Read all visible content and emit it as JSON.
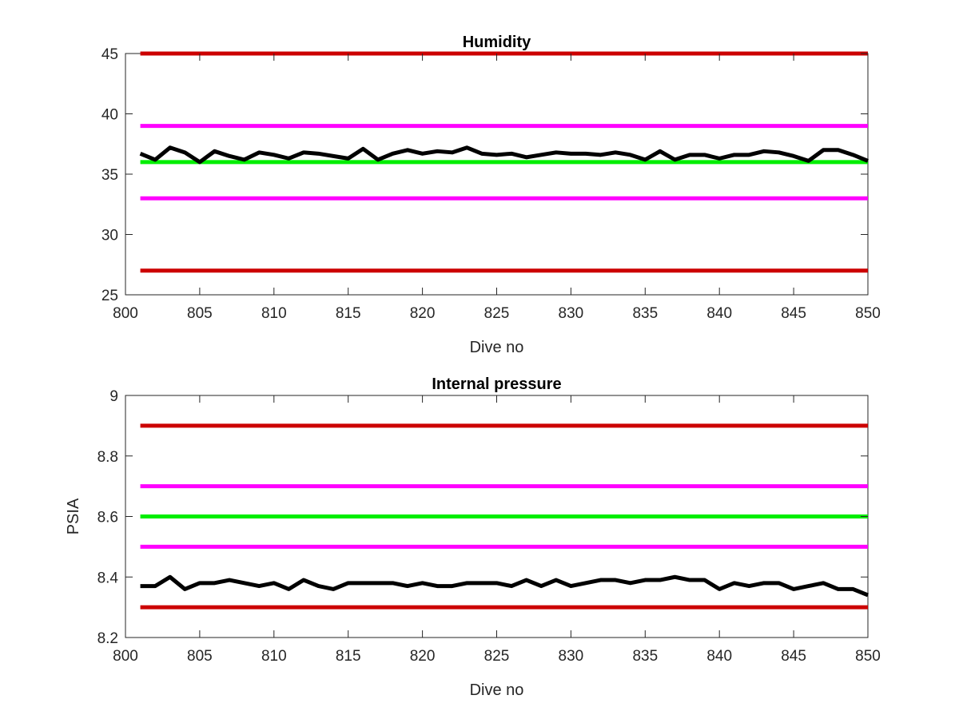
{
  "colors": {
    "limit_red": "#cc0000",
    "limit_magenta": "#ff00ff",
    "limit_green": "#00ee00",
    "data_black": "#000000",
    "axis": "#262626"
  },
  "chart_data": [
    {
      "type": "line",
      "title": "Humidity",
      "xlabel": "Dive no",
      "ylabel": "",
      "xlim": [
        800,
        850
      ],
      "ylim": [
        25,
        45
      ],
      "xticks": [
        800,
        805,
        810,
        815,
        820,
        825,
        830,
        835,
        840,
        845,
        850
      ],
      "xtick_labels": [
        "800",
        "805",
        "810",
        "815",
        "820",
        "825",
        "830",
        "835",
        "840",
        "845",
        "850"
      ],
      "yticks": [
        25,
        30,
        35,
        40,
        45
      ],
      "ytick_labels": [
        "25",
        "30",
        "35",
        "40",
        "45"
      ],
      "grid": false,
      "reference_lines": [
        {
          "y": 45,
          "color": "#cc0000"
        },
        {
          "y": 39,
          "color": "#ff00ff"
        },
        {
          "y": 36,
          "color": "#00ee00"
        },
        {
          "y": 33,
          "color": "#ff00ff"
        },
        {
          "y": 27,
          "color": "#cc0000"
        }
      ],
      "series": [
        {
          "color": "#000000",
          "x": [
            801,
            802,
            803,
            804,
            805,
            806,
            807,
            808,
            809,
            810,
            811,
            812,
            813,
            814,
            815,
            816,
            817,
            818,
            819,
            820,
            821,
            822,
            823,
            824,
            825,
            826,
            827,
            828,
            829,
            830,
            831,
            832,
            833,
            834,
            835,
            836,
            837,
            838,
            839,
            840,
            841,
            842,
            843,
            844,
            845,
            846,
            847,
            848,
            849,
            850
          ],
          "y": [
            36.7,
            36.2,
            37.2,
            36.8,
            36.0,
            36.9,
            36.5,
            36.2,
            36.8,
            36.6,
            36.3,
            36.8,
            36.7,
            36.5,
            36.3,
            37.1,
            36.2,
            36.7,
            37.0,
            36.7,
            36.9,
            36.8,
            37.2,
            36.7,
            36.6,
            36.7,
            36.4,
            36.6,
            36.8,
            36.7,
            36.7,
            36.6,
            36.8,
            36.6,
            36.2,
            36.9,
            36.2,
            36.6,
            36.6,
            36.3,
            36.6,
            36.6,
            36.9,
            36.8,
            36.5,
            36.1,
            37.0,
            37.0,
            36.6,
            36.1
          ]
        }
      ]
    },
    {
      "type": "line",
      "title": "Internal pressure",
      "xlabel": "Dive no",
      "ylabel": "PSIA",
      "xlim": [
        800,
        850
      ],
      "ylim": [
        8.2,
        9
      ],
      "xticks": [
        800,
        805,
        810,
        815,
        820,
        825,
        830,
        835,
        840,
        845,
        850
      ],
      "xtick_labels": [
        "800",
        "805",
        "810",
        "815",
        "820",
        "825",
        "830",
        "835",
        "840",
        "845",
        "850"
      ],
      "yticks": [
        8.2,
        8.4,
        8.6,
        8.8,
        9
      ],
      "ytick_labels": [
        "8.2",
        "8.4",
        "8.6",
        "8.8",
        "9"
      ],
      "grid": false,
      "reference_lines": [
        {
          "y": 8.9,
          "color": "#cc0000"
        },
        {
          "y": 8.7,
          "color": "#ff00ff"
        },
        {
          "y": 8.6,
          "color": "#00ee00"
        },
        {
          "y": 8.5,
          "color": "#ff00ff"
        },
        {
          "y": 8.3,
          "color": "#cc0000"
        }
      ],
      "series": [
        {
          "color": "#000000",
          "x": [
            801,
            802,
            803,
            804,
            805,
            806,
            807,
            808,
            809,
            810,
            811,
            812,
            813,
            814,
            815,
            816,
            817,
            818,
            819,
            820,
            821,
            822,
            823,
            824,
            825,
            826,
            827,
            828,
            829,
            830,
            831,
            832,
            833,
            834,
            835,
            836,
            837,
            838,
            839,
            840,
            841,
            842,
            843,
            844,
            845,
            846,
            847,
            848,
            849,
            850
          ],
          "y": [
            8.37,
            8.37,
            8.4,
            8.36,
            8.38,
            8.38,
            8.39,
            8.38,
            8.37,
            8.38,
            8.36,
            8.39,
            8.37,
            8.36,
            8.38,
            8.38,
            8.38,
            8.38,
            8.37,
            8.38,
            8.37,
            8.37,
            8.38,
            8.38,
            8.38,
            8.37,
            8.39,
            8.37,
            8.39,
            8.37,
            8.38,
            8.39,
            8.39,
            8.38,
            8.39,
            8.39,
            8.4,
            8.39,
            8.39,
            8.36,
            8.38,
            8.37,
            8.38,
            8.38,
            8.36,
            8.37,
            8.38,
            8.36,
            8.36,
            8.34
          ]
        }
      ]
    }
  ]
}
